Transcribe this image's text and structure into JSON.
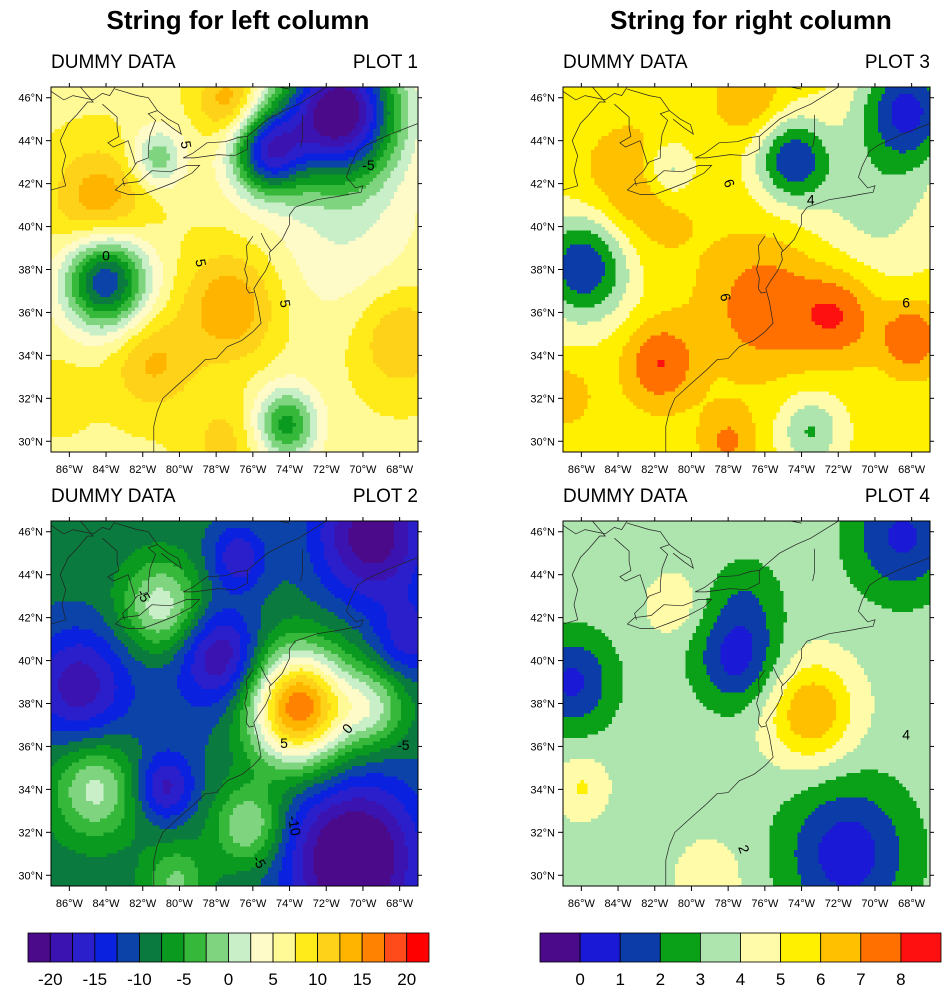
{
  "columns": {
    "left_title": "String for left column",
    "right_title": "String for right column"
  },
  "chart_data": [
    {
      "type": "heatmap",
      "id": "plot1",
      "left_label": "DUMMY DATA",
      "right_label": "PLOT 1",
      "colorbar": "A",
      "xlim": [
        -87,
        -67
      ],
      "ylim": [
        29.5,
        46.5
      ],
      "xticks": [
        "86°W",
        "84°W",
        "82°W",
        "80°W",
        "78°W",
        "76°W",
        "74°W",
        "72°W",
        "70°W",
        "68°W"
      ],
      "yticks": [
        "30°N",
        "32°N",
        "34°N",
        "36°N",
        "38°N",
        "40°N",
        "42°N",
        "44°N",
        "46°N"
      ],
      "base": 7,
      "blobs": [
        {
          "lon": -71.3,
          "lat": 45.4,
          "amp": -30,
          "s": 2.2
        },
        {
          "lon": -75.2,
          "lat": 43.5,
          "amp": -20,
          "s": 1.4
        },
        {
          "lon": -84.0,
          "lat": 37.5,
          "amp": -20,
          "s": 1.6
        },
        {
          "lon": -81.2,
          "lat": 43.2,
          "amp": -9,
          "s": 1.0
        },
        {
          "lon": -74.2,
          "lat": 30.8,
          "amp": -13,
          "s": 1.2
        },
        {
          "lon": -84.3,
          "lat": 41.0,
          "amp": 8,
          "s": 1.8
        },
        {
          "lon": -77.2,
          "lat": 45.8,
          "amp": 8,
          "s": 1.2
        },
        {
          "lon": -77.2,
          "lat": 36.3,
          "amp": 8,
          "s": 1.8
        },
        {
          "lon": -81.5,
          "lat": 33.7,
          "amp": 6,
          "s": 1.6
        },
        {
          "lon": -68.0,
          "lat": 34.8,
          "amp": 6,
          "s": 1.7
        },
        {
          "lon": -77.5,
          "lat": 30.0,
          "amp": 4,
          "s": 1.4
        },
        {
          "lon": -86.5,
          "lat": 32.2,
          "amp": 2,
          "s": 1.2
        },
        {
          "lon": -71.0,
          "lat": 39.5,
          "amp": -4,
          "s": 3.0
        }
      ],
      "contour_labels": [
        {
          "text": "5",
          "lon": -79.7,
          "lat": 43.8,
          "rot": 80
        },
        {
          "text": "-5",
          "lon": -69.7,
          "lat": 42.8,
          "rot": 0
        },
        {
          "text": "0",
          "lon": -84.0,
          "lat": 38.6,
          "rot": 0
        },
        {
          "text": "5",
          "lon": -78.9,
          "lat": 38.3,
          "rot": 80
        },
        {
          "text": "5",
          "lon": -74.3,
          "lat": 36.4,
          "rot": 80
        }
      ]
    },
    {
      "type": "heatmap",
      "id": "plot2",
      "left_label": "DUMMY DATA",
      "right_label": "PLOT 2",
      "colorbar": "A",
      "xlim": [
        -87,
        -67
      ],
      "ylim": [
        29.5,
        46.5
      ],
      "xticks": [
        "86°W",
        "84°W",
        "82°W",
        "80°W",
        "78°W",
        "76°W",
        "74°W",
        "72°W",
        "70°W",
        "68°W"
      ],
      "yticks": [
        "30°N",
        "32°N",
        "34°N",
        "36°N",
        "38°N",
        "40°N",
        "42°N",
        "44°N",
        "46°N"
      ],
      "base": -9,
      "blobs": [
        {
          "lon": -70.5,
          "lat": 30.8,
          "amp": -16,
          "s": 2.6
        },
        {
          "lon": -69.5,
          "lat": 45.8,
          "amp": -13,
          "s": 2.2
        },
        {
          "lon": -67.5,
          "lat": 41.0,
          "amp": -7,
          "s": 1.3
        },
        {
          "lon": -77.7,
          "lat": 40.2,
          "amp": -10,
          "s": 1.5
        },
        {
          "lon": -76.8,
          "lat": 44.8,
          "amp": -8,
          "s": 1.1
        },
        {
          "lon": -85.5,
          "lat": 38.8,
          "amp": -10,
          "s": 1.9
        },
        {
          "lon": -80.8,
          "lat": 34.1,
          "amp": -9,
          "s": 1.1
        },
        {
          "lon": -73.5,
          "lat": 37.8,
          "amp": 26,
          "s": 1.9
        },
        {
          "lon": -69.5,
          "lat": 37.8,
          "amp": 9,
          "s": 1.3
        },
        {
          "lon": -81.0,
          "lat": 42.5,
          "amp": 11,
          "s": 1.5
        },
        {
          "lon": -84.6,
          "lat": 34.0,
          "amp": 10,
          "s": 1.6
        },
        {
          "lon": -76.2,
          "lat": 32.3,
          "amp": 10,
          "s": 1.3
        },
        {
          "lon": -80.2,
          "lat": 29.7,
          "amp": 7,
          "s": 1.2
        },
        {
          "lon": -79.5,
          "lat": 38.5,
          "amp": -2,
          "s": 2.5
        }
      ],
      "contour_labels": [
        {
          "text": "-5",
          "lon": -82.0,
          "lat": 43.0,
          "rot": 60
        },
        {
          "text": "5",
          "lon": -74.3,
          "lat": 36.1,
          "rot": 0
        },
        {
          "text": "0",
          "lon": -70.8,
          "lat": 36.8,
          "rot": -50
        },
        {
          "text": "-5",
          "lon": -67.8,
          "lat": 36.0,
          "rot": 0
        },
        {
          "text": "-10",
          "lon": -73.8,
          "lat": 32.3,
          "rot": 80
        },
        {
          "text": "-5",
          "lon": -75.7,
          "lat": 30.6,
          "rot": 60
        }
      ]
    },
    {
      "type": "heatmap",
      "id": "plot3",
      "left_label": "DUMMY DATA",
      "right_label": "PLOT 3",
      "colorbar": "B",
      "xlim": [
        -87,
        -67
      ],
      "ylim": [
        29.5,
        46.5
      ],
      "xticks": [
        "86°W",
        "84°W",
        "82°W",
        "80°W",
        "78°W",
        "76°W",
        "74°W",
        "72°W",
        "70°W",
        "68°W"
      ],
      "yticks": [
        "30°N",
        "32°N",
        "34°N",
        "36°N",
        "38°N",
        "40°N",
        "42°N",
        "44°N",
        "46°N"
      ],
      "base": 5.4,
      "blobs": [
        {
          "lon": -68.2,
          "lat": 45.5,
          "amp": -4.5,
          "s": 1.8
        },
        {
          "lon": -74.5,
          "lat": 43.1,
          "amp": -4,
          "s": 1.4
        },
        {
          "lon": -85.8,
          "lat": 38.2,
          "amp": -4.5,
          "s": 1.8
        },
        {
          "lon": -81.2,
          "lat": 42.6,
          "amp": -2.5,
          "s": 1.0
        },
        {
          "lon": -73.5,
          "lat": 30.5,
          "amp": -2.5,
          "s": 1.2
        },
        {
          "lon": -70.0,
          "lat": 41.2,
          "amp": -1.8,
          "s": 2.6
        },
        {
          "lon": -83.0,
          "lat": 41.5,
          "amp": 1.8,
          "s": 2.2
        },
        {
          "lon": -76.8,
          "lat": 46.0,
          "amp": 1.6,
          "s": 1.3
        },
        {
          "lon": -76.0,
          "lat": 36.3,
          "amp": 2.4,
          "s": 2.2
        },
        {
          "lon": -72.0,
          "lat": 35.9,
          "amp": 2.4,
          "s": 1.5
        },
        {
          "lon": -68.0,
          "lat": 34.8,
          "amp": 2.6,
          "s": 1.2
        },
        {
          "lon": -81.7,
          "lat": 33.6,
          "amp": 2.6,
          "s": 1.4
        },
        {
          "lon": -78.0,
          "lat": 30.0,
          "amp": 1.8,
          "s": 1.1
        },
        {
          "lon": -86.8,
          "lat": 32.1,
          "amp": 1.5,
          "s": 0.9
        }
      ],
      "contour_labels": [
        {
          "text": "6",
          "lon": -78.0,
          "lat": 42.0,
          "rot": 70
        },
        {
          "text": "4",
          "lon": -73.5,
          "lat": 41.2,
          "rot": 0
        },
        {
          "text": "6",
          "lon": -78.2,
          "lat": 36.7,
          "rot": 80
        },
        {
          "text": "6",
          "lon": -68.3,
          "lat": 36.4,
          "rot": 0
        }
      ]
    },
    {
      "type": "heatmap",
      "id": "plot4",
      "left_label": "DUMMY DATA",
      "right_label": "PLOT 4",
      "colorbar": "B",
      "xlim": [
        -87,
        -67
      ],
      "ylim": [
        29.5,
        46.5
      ],
      "xticks": [
        "86°W",
        "84°W",
        "82°W",
        "80°W",
        "78°W",
        "76°W",
        "74°W",
        "72°W",
        "70°W",
        "68°W"
      ],
      "yticks": [
        "30°N",
        "32°N",
        "34°N",
        "36°N",
        "38°N",
        "40°N",
        "42°N",
        "44°N",
        "46°N"
      ],
      "base": 3.6,
      "blobs": [
        {
          "lon": -71.5,
          "lat": 31.0,
          "amp": -3.2,
          "s": 2.4
        },
        {
          "lon": -68.5,
          "lat": 45.8,
          "amp": -2.8,
          "s": 2.0
        },
        {
          "lon": -77.5,
          "lat": 40.1,
          "amp": -3.0,
          "s": 1.6
        },
        {
          "lon": -86.5,
          "lat": 39.0,
          "amp": -2.8,
          "s": 1.6
        },
        {
          "lon": -77.0,
          "lat": 43.0,
          "amp": -1.2,
          "s": 1.4
        },
        {
          "lon": -73.5,
          "lat": 37.6,
          "amp": 3.4,
          "s": 1.7
        },
        {
          "lon": -81.0,
          "lat": 42.6,
          "amp": 1.3,
          "s": 1.0
        },
        {
          "lon": -86.0,
          "lat": 34.1,
          "amp": 1.5,
          "s": 1.0
        },
        {
          "lon": -79.0,
          "lat": 29.8,
          "amp": 1.2,
          "s": 1.3
        }
      ],
      "contour_labels": [
        {
          "text": "4",
          "lon": -68.3,
          "lat": 36.5,
          "rot": 0
        },
        {
          "text": "2",
          "lon": -77.2,
          "lat": 31.2,
          "rot": 70
        }
      ]
    }
  ],
  "colorbars": {
    "A": {
      "levels": [
        -20,
        -17.5,
        -15,
        -12.5,
        -10,
        -7.5,
        -5,
        -2.5,
        0,
        2.5,
        5,
        7.5,
        10,
        12.5,
        15,
        17.5,
        20
      ],
      "colors": [
        "#4a0a8a",
        "#3b13b0",
        "#2b1fcc",
        "#0a22e0",
        "#0b43a8",
        "#0a7a3e",
        "#0a9a20",
        "#36b83a",
        "#7fd57f",
        "#c9efc9",
        "#fffbc8",
        "#fffa96",
        "#ffeb1a",
        "#ffd21a",
        "#ffb400",
        "#ff8200",
        "#ff4a1a",
        "#ff0000"
      ],
      "labels": [
        {
          "text": "-20",
          "v": -20
        },
        {
          "text": "-15",
          "v": -15
        },
        {
          "text": "-10",
          "v": -10
        },
        {
          "text": "-5",
          "v": -5
        },
        {
          "text": "0",
          "v": 0
        },
        {
          "text": "5",
          "v": 5
        },
        {
          "text": "10",
          "v": 10
        },
        {
          "text": "15",
          "v": 15
        },
        {
          "text": "20",
          "v": 20
        }
      ]
    },
    "B": {
      "levels": [
        0,
        1,
        2,
        3,
        4,
        5,
        6,
        7,
        8
      ],
      "colors": [
        "#4a0a8a",
        "#1a1ad6",
        "#0b3ca8",
        "#0aa018",
        "#aee4ae",
        "#fffba8",
        "#fff000",
        "#ffc000",
        "#ff7000",
        "#ff1010"
      ],
      "labels": [
        {
          "text": "0",
          "v": 0
        },
        {
          "text": "1",
          "v": 1
        },
        {
          "text": "2",
          "v": 2
        },
        {
          "text": "3",
          "v": 3
        },
        {
          "text": "4",
          "v": 4
        },
        {
          "text": "5",
          "v": 5
        },
        {
          "text": "6",
          "v": 6
        },
        {
          "text": "7",
          "v": 7
        },
        {
          "text": "8",
          "v": 8
        }
      ]
    }
  }
}
